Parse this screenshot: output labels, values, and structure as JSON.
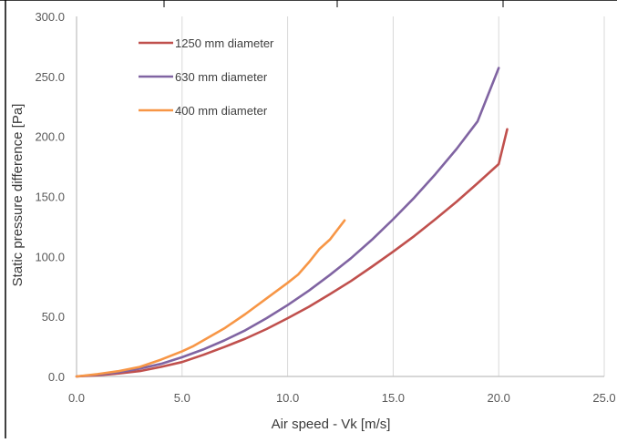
{
  "chart_data": {
    "type": "line",
    "title": "",
    "xlabel": "Air speed - Vk [m/s]",
    "ylabel": "Static pressure difference [Pa]",
    "xlim": [
      0,
      25
    ],
    "ylim": [
      0,
      300
    ],
    "x_ticks": [
      "0.0",
      "5.0",
      "10.0",
      "15.0",
      "20.0",
      "25.0"
    ],
    "y_ticks": [
      "0.0",
      "50.0",
      "100.0",
      "150.0",
      "200.0",
      "250.0",
      "300.0"
    ],
    "grid": "vertical",
    "legend_position": "top-left",
    "series": [
      {
        "name": "1250 mm diameter",
        "color": "#c0504d",
        "x": [
          0.0,
          1.0,
          2.0,
          3.0,
          4.0,
          5.0,
          6.0,
          7.0,
          8.0,
          9.0,
          10.0,
          11.0,
          12.0,
          13.0,
          14.0,
          15.0,
          16.0,
          17.0,
          18.0,
          19.0,
          20.0,
          20.4
        ],
        "y": [
          0.0,
          1.0,
          2.5,
          4.5,
          8.0,
          12.0,
          18.0,
          24.5,
          31.5,
          39.5,
          48.5,
          58.0,
          68.5,
          79.5,
          91.5,
          104.0,
          117.0,
          131.0,
          145.5,
          161.0,
          177.0,
          206.0
        ]
      },
      {
        "name": "630 mm diameter",
        "color": "#8064a2",
        "x": [
          0.0,
          1.0,
          2.0,
          3.0,
          4.0,
          5.0,
          6.0,
          7.0,
          8.0,
          9.0,
          10.0,
          11.0,
          12.0,
          13.0,
          14.0,
          15.0,
          16.0,
          17.0,
          18.0,
          19.0,
          20.0
        ],
        "y": [
          0.0,
          1.5,
          3.5,
          6.5,
          10.5,
          16.0,
          22.5,
          30.0,
          38.5,
          48.5,
          59.5,
          71.5,
          84.5,
          98.5,
          114.0,
          131.0,
          149.0,
          168.5,
          189.5,
          212.5,
          257.0
        ]
      },
      {
        "name": "400 mm diameter",
        "color": "#f79646",
        "x": [
          0.0,
          1.0,
          2.0,
          3.0,
          4.0,
          5.0,
          5.5,
          6.0,
          7.0,
          8.0,
          9.0,
          10.0,
          10.5,
          11.0,
          11.5,
          12.0,
          12.7
        ],
        "y": [
          0.0,
          2.0,
          4.5,
          8.0,
          14.0,
          21.0,
          25.0,
          30.0,
          40.0,
          52.0,
          65.0,
          78.0,
          85.0,
          95.0,
          106.0,
          114.0,
          130.0
        ]
      }
    ]
  }
}
